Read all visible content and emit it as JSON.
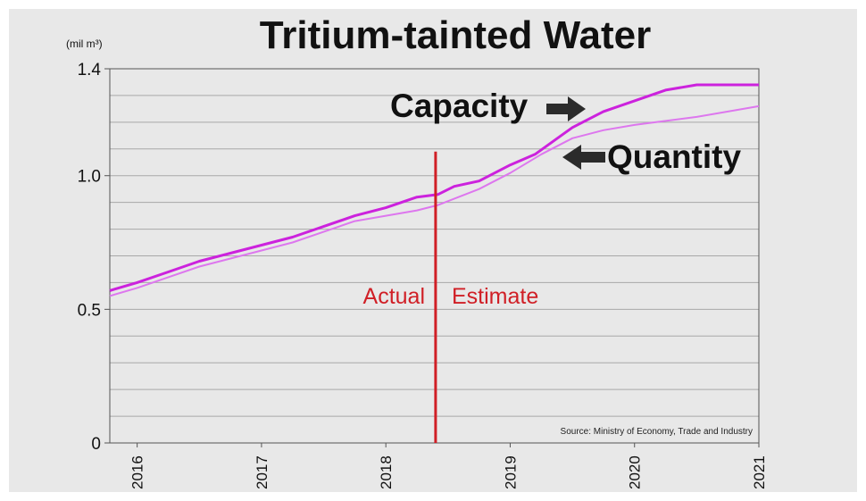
{
  "chart_data": {
    "type": "line",
    "title": "Tritium-tainted Water",
    "unit_label": "(mil m³)",
    "ylim": [
      0,
      1.4
    ],
    "y_ticks": [
      {
        "value": 0,
        "label": "0"
      },
      {
        "value": 0.5,
        "label": "0.5"
      },
      {
        "value": 1.0,
        "label": "1.0"
      },
      {
        "value": 1.4,
        "label": "1.4"
      }
    ],
    "x_range": [
      2015.78,
      2021.0
    ],
    "x_ticks": [
      {
        "value": 2016,
        "label": "2016"
      },
      {
        "value": 2017,
        "label": "2017"
      },
      {
        "value": 2018,
        "label": "2018"
      },
      {
        "value": 2019,
        "label": "2019"
      },
      {
        "value": 2020,
        "label": "2020"
      },
      {
        "value": 2021,
        "label": "2021"
      }
    ],
    "grid": true,
    "series": [
      {
        "name": "Capacity",
        "color": "#cc22dd",
        "points": [
          [
            2015.78,
            0.57
          ],
          [
            2016.0,
            0.6
          ],
          [
            2016.25,
            0.64
          ],
          [
            2016.5,
            0.68
          ],
          [
            2016.75,
            0.71
          ],
          [
            2017.0,
            0.74
          ],
          [
            2017.25,
            0.77
          ],
          [
            2017.5,
            0.81
          ],
          [
            2017.75,
            0.85
          ],
          [
            2018.0,
            0.88
          ],
          [
            2018.25,
            0.92
          ],
          [
            2018.42,
            0.93
          ],
          [
            2018.55,
            0.96
          ],
          [
            2018.75,
            0.98
          ],
          [
            2019.0,
            1.04
          ],
          [
            2019.2,
            1.08
          ],
          [
            2019.5,
            1.18
          ],
          [
            2019.75,
            1.24
          ],
          [
            2020.0,
            1.28
          ],
          [
            2020.25,
            1.32
          ],
          [
            2020.5,
            1.34
          ],
          [
            2021.0,
            1.34
          ]
        ]
      },
      {
        "name": "Quantity",
        "color": "#dd77ee",
        "points": [
          [
            2015.78,
            0.55
          ],
          [
            2016.0,
            0.58
          ],
          [
            2016.25,
            0.62
          ],
          [
            2016.5,
            0.66
          ],
          [
            2016.75,
            0.69
          ],
          [
            2017.0,
            0.72
          ],
          [
            2017.25,
            0.75
          ],
          [
            2017.5,
            0.79
          ],
          [
            2017.75,
            0.83
          ],
          [
            2018.0,
            0.85
          ],
          [
            2018.25,
            0.87
          ],
          [
            2018.42,
            0.89
          ],
          [
            2018.75,
            0.95
          ],
          [
            2019.0,
            1.01
          ],
          [
            2019.25,
            1.08
          ],
          [
            2019.5,
            1.14
          ],
          [
            2019.75,
            1.17
          ],
          [
            2020.0,
            1.19
          ],
          [
            2020.5,
            1.22
          ],
          [
            2021.0,
            1.26
          ]
        ]
      }
    ],
    "divider": {
      "x": 2018.4,
      "y_top": 1.09,
      "color": "#d01f26"
    },
    "annotations": {
      "capacity": "Capacity",
      "quantity": "Quantity",
      "actual": "Actual",
      "estimate": "Estimate",
      "source": "Source: Ministry of Economy, Trade and Industry"
    }
  }
}
